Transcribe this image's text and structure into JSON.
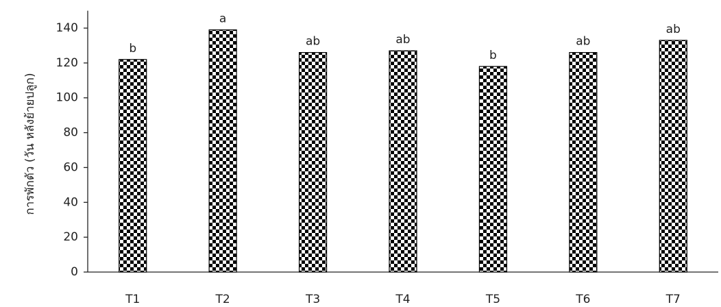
{
  "chart_data": {
    "type": "bar",
    "y_label": "การพักตัว (วัน หลังย้ายปลูก)",
    "categories": [
      "T1",
      "T2",
      "T3",
      "T4",
      "T5",
      "T6",
      "T7"
    ],
    "values": [
      122,
      139,
      126,
      127,
      118,
      126,
      133
    ],
    "annotations": [
      "b",
      "a",
      "ab",
      "ab",
      "b",
      "ab",
      "ab"
    ],
    "color": "#000000",
    "ylim": [
      0,
      150
    ],
    "yticks": [
      0,
      20,
      40,
      60,
      80,
      100,
      120,
      140
    ],
    "grid": false
  }
}
